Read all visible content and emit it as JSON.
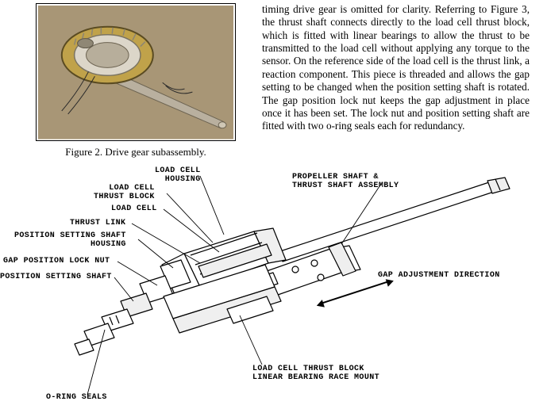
{
  "text_column": "timing drive gear is omitted for clarity. Referring to Figure 3, the thrust shaft connects directly to the load cell thrust block, which is fitted with linear bearings to allow the thrust to be transmitted to the load cell without applying any torque to the sensor.  On the reference side of the load cell is the thrust link, a reaction component.  This piece is threaded and allows the gap setting to be changed when the position setting shaft is rotated.  The gap position lock nut keeps the gap adjustment in place once it has been set.  The lock nut and position setting shaft are fitted with two o-ring seals each for redundancy.",
  "caption_fig2": "Figure 2. Drive gear subassembly.",
  "photo": {
    "background": "#a89676",
    "hub_fill": "#d6d1c6",
    "hub_gold": "#c0a24a",
    "shaft_fill": "#bdb5a6"
  },
  "labels": {
    "load_cell_housing": "LOAD CELL\nHOUSING",
    "load_cell_thrust_block": "LOAD CELL\nTHRUST BLOCK",
    "load_cell": "LOAD CELL",
    "thrust_link": "THRUST LINK",
    "pos_set_shaft_housing": "POSITION SETTING SHAFT\nHOUSING",
    "gap_pos_lock_nut": "GAP POSITION LOCK NUT",
    "pos_set_shaft": "POSITION SETTING SHAFT",
    "prop_thrust_asm": "PROPELLER SHAFT &\nTHRUST SHAFT ASSEMBLY",
    "gap_adj_dir": "GAP ADJUSTMENT DIRECTION",
    "lctb_linear": "LOAD CELL THRUST BLOCK\nLINEAR BEARING RACE MOUNT",
    "oring": "O-RING SEALS"
  },
  "diagram": {
    "stroke": "#000000",
    "fill": "#ffffff",
    "shade": "#efefef"
  }
}
